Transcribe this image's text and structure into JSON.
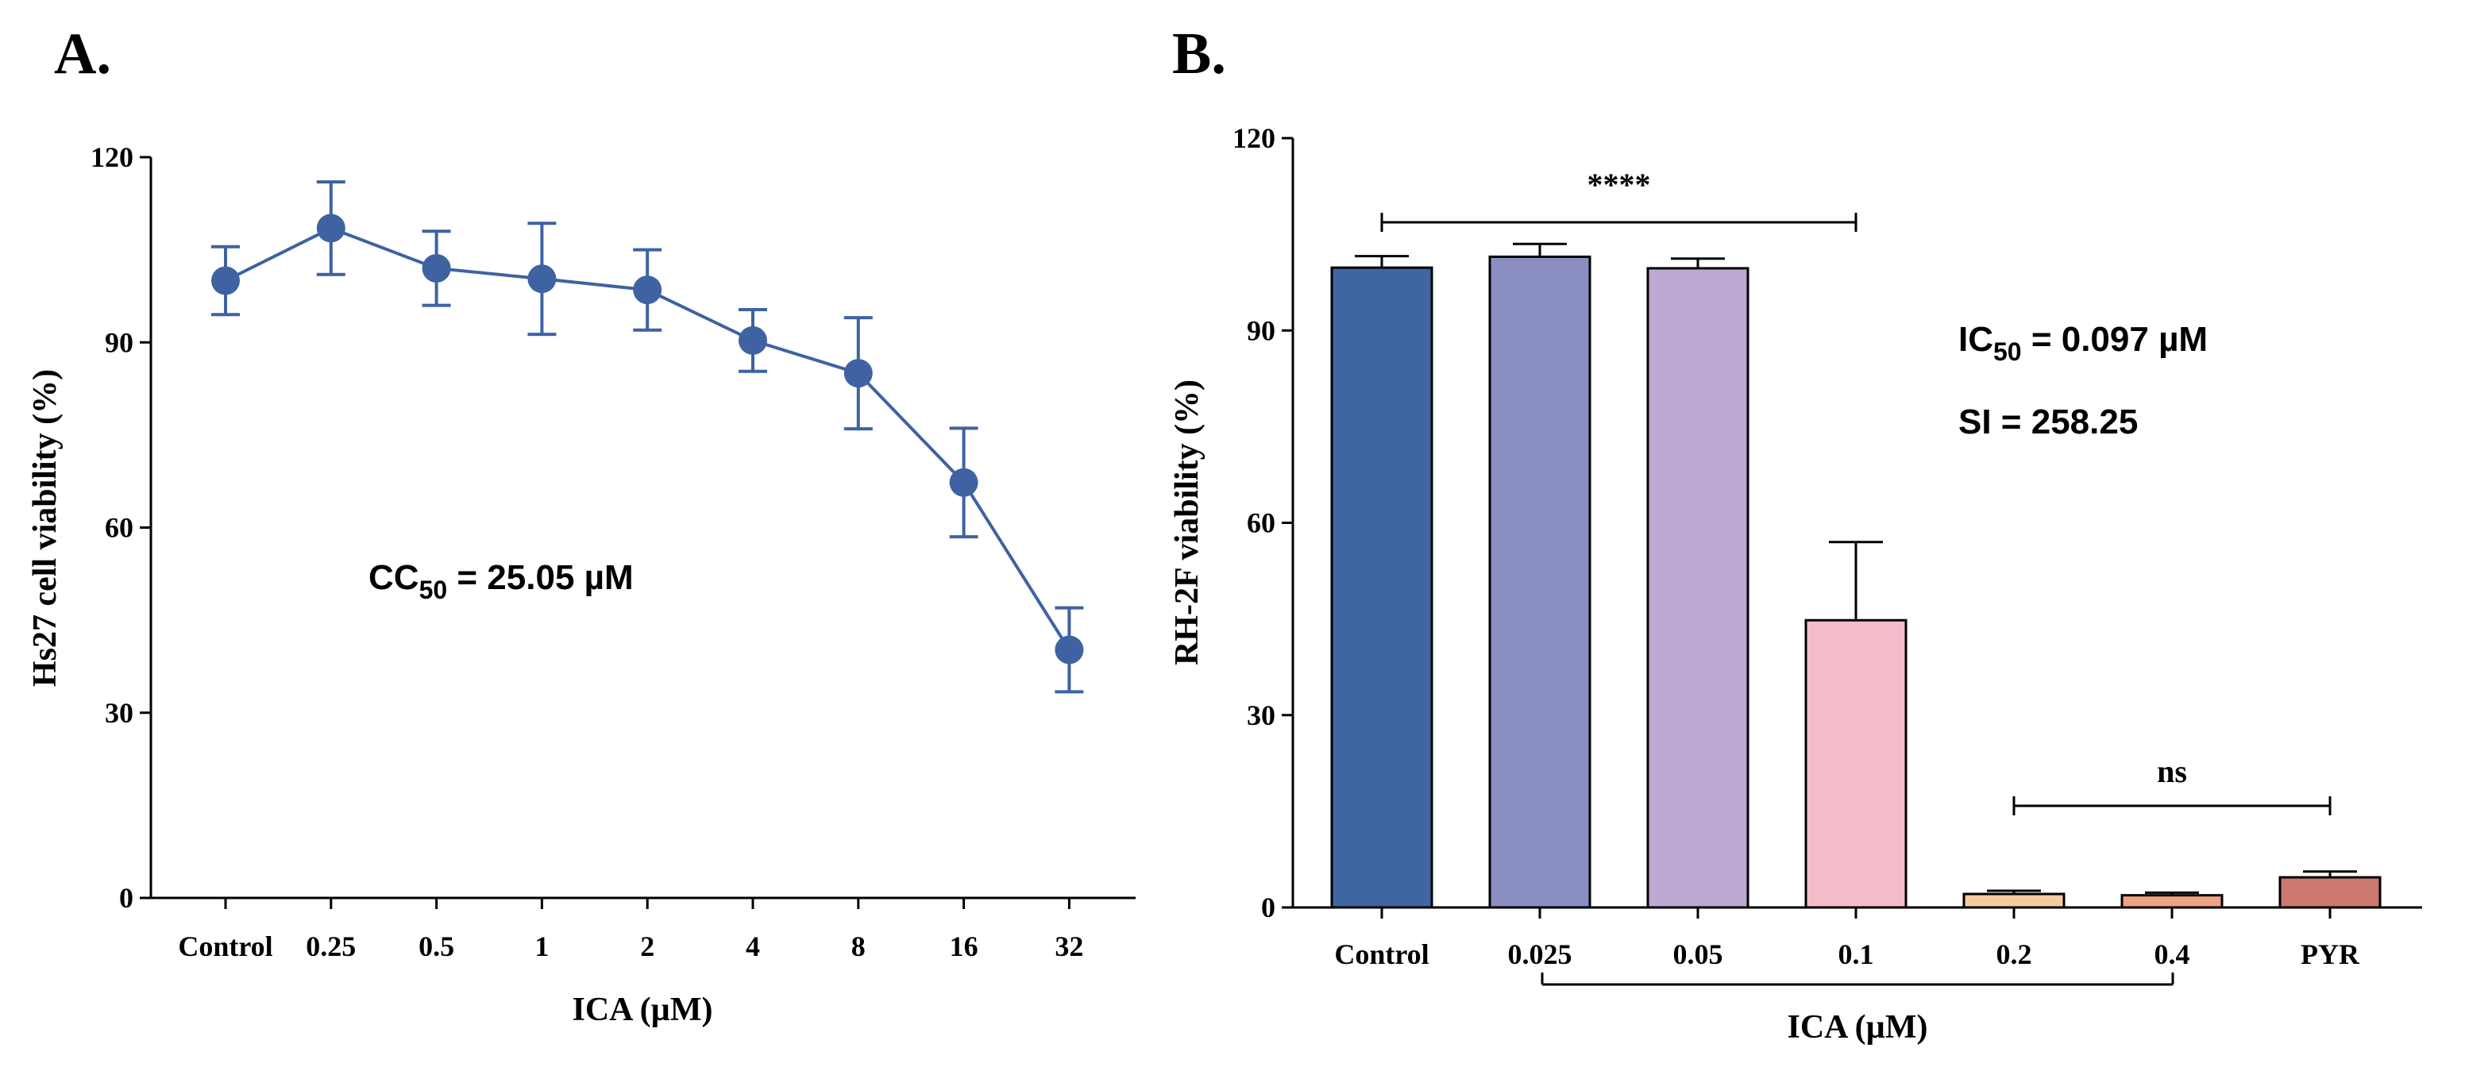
{
  "chart_data": [
    {
      "panel": "A.",
      "type": "line",
      "categories": [
        "Control",
        "0.25",
        "0.5",
        "1",
        "2",
        "4",
        "8",
        "16",
        "32"
      ],
      "values": [
        100,
        108.5,
        102,
        100.3,
        98.5,
        90.3,
        85,
        67.3,
        40.2
      ],
      "errors": [
        5.5,
        7.5,
        6,
        9,
        6.5,
        5,
        9,
        8.8,
        6.8
      ],
      "xlabel": "ICA (µM)",
      "ylabel": "Hs27 cell viability (%)",
      "ylim": [
        0,
        120
      ],
      "yticks": [
        0,
        30,
        60,
        90,
        120
      ],
      "color": "#3E62A2",
      "annotation": {
        "prefix": "CC",
        "sub": "50",
        "suffix": " = 25.05 µM"
      }
    },
    {
      "panel": "B.",
      "type": "bar",
      "categories": [
        "Control",
        "0.025",
        "0.05",
        "0.1",
        "0.2",
        "0.4",
        "PYR"
      ],
      "values": [
        99.8,
        101.5,
        99.7,
        44.8,
        2.1,
        1.9,
        4.7
      ],
      "errors": [
        1.8,
        2.0,
        1.5,
        12.2,
        0.5,
        0.4,
        0.9
      ],
      "colors": [
        "#3F65A3",
        "#8A8EC2",
        "#BEA9D2",
        "#F4BCC8",
        "#F6CBA0",
        "#F0A285",
        "#CB786F"
      ],
      "xlabel": "ICA (µM)",
      "ylabel": "RH-2F viability (%)",
      "ylim": [
        0,
        120
      ],
      "yticks": [
        0,
        30,
        60,
        90,
        120
      ],
      "annotations": [
        {
          "prefix": "IC",
          "sub": "50",
          "suffix": " = 0.097 µM"
        },
        {
          "prefix": "SI = 258.25",
          "sub": "",
          "suffix": ""
        }
      ],
      "significance": [
        {
          "label": "****",
          "from": 0,
          "to": 3
        },
        {
          "label": "ns",
          "from": 4,
          "to": 6
        }
      ]
    }
  ]
}
